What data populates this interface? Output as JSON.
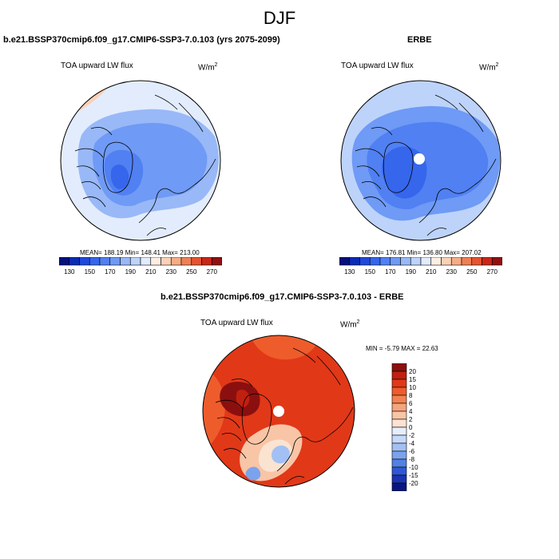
{
  "header": {
    "season": "DJF"
  },
  "panels": [
    {
      "title": "b.e21.BSSP370cmip6.f09_g17.CMIP6-SSP3-7.0.103 (yrs 2075-2099)",
      "variable": "TOA upward LW flux",
      "units_base": "W/m",
      "units_exp": "2",
      "stats": "MEAN= 188.19  Min= 148.41  Max= 213.00"
    },
    {
      "title": "ERBE",
      "variable": "TOA upward LW flux",
      "units_base": "W/m",
      "units_exp": "2",
      "stats": "MEAN= 176.81  Min= 136.80  Max= 207.02"
    },
    {
      "title": "b.e21.BSSP370cmip6.f09_g17.CMIP6-SSP3-7.0.103 - ERBE",
      "variable": "TOA upward LW flux",
      "units_base": "W/m",
      "units_exp": "2",
      "stats": "MIN =  -5.79 MAX =  22.63"
    }
  ],
  "chart_data": [
    {
      "type": "heatmap",
      "projection": "north polar stereographic",
      "title": "b.e21.BSSP370cmip6.f09_g17.CMIP6-SSP3-7.0.103 (yrs 2075-2099)",
      "variable": "TOA upward LW flux",
      "units": "W/m2",
      "mean": 188.19,
      "min": 148.41,
      "max": 213.0,
      "colorbar": {
        "orientation": "horizontal",
        "levels": [
          120,
          130,
          140,
          150,
          160,
          170,
          180,
          190,
          200,
          210,
          220,
          230,
          240,
          250,
          260,
          270
        ],
        "tick_labels": [
          "130",
          "150",
          "170",
          "190",
          "210",
          "230",
          "250",
          "270"
        ],
        "colors": [
          "#08107e",
          "#0c2bb4",
          "#1f49dc",
          "#3566ec",
          "#5080f2",
          "#6f9af5",
          "#98b8f8",
          "#bdd3fa",
          "#e2ecfc",
          "#fdeee2",
          "#fbd1b6",
          "#f6ac85",
          "#f07f56",
          "#e45430",
          "#c7281a",
          "#911011"
        ]
      }
    },
    {
      "type": "heatmap",
      "projection": "north polar stereographic",
      "title": "ERBE",
      "variable": "TOA upward LW flux",
      "units": "W/m2",
      "mean": 176.81,
      "min": 136.8,
      "max": 207.02,
      "colorbar": {
        "orientation": "horizontal",
        "levels": [
          120,
          130,
          140,
          150,
          160,
          170,
          180,
          190,
          200,
          210,
          220,
          230,
          240,
          250,
          260,
          270
        ],
        "tick_labels": [
          "130",
          "150",
          "170",
          "190",
          "210",
          "230",
          "250",
          "270"
        ],
        "colors": [
          "#08107e",
          "#0c2bb4",
          "#1f49dc",
          "#3566ec",
          "#5080f2",
          "#6f9af5",
          "#98b8f8",
          "#bdd3fa",
          "#e2ecfc",
          "#fdeee2",
          "#fbd1b6",
          "#f6ac85",
          "#f07f56",
          "#e45430",
          "#c7281a",
          "#911011"
        ]
      }
    },
    {
      "type": "heatmap",
      "projection": "north polar stereographic",
      "title": "b.e21.BSSP370cmip6.f09_g17.CMIP6-SSP3-7.0.103 - ERBE",
      "variable": "TOA upward LW flux",
      "units": "W/m2",
      "min": -5.79,
      "max": 22.63,
      "colorbar": {
        "orientation": "vertical",
        "tick_labels": [
          "20",
          "15",
          "10",
          "8",
          "6",
          "4",
          "2",
          "0",
          "-2",
          "-4",
          "-6",
          "-8",
          "-10",
          "-15",
          "-20"
        ],
        "colors": [
          "#8b0f0f",
          "#c0200f",
          "#e13818",
          "#ee5c2c",
          "#f28252",
          "#f5a47c",
          "#f8c5a6",
          "#fbe3d2",
          "#e6eefc",
          "#c7d9f8",
          "#a2c0f3",
          "#7ba3ed",
          "#5280e4",
          "#3158d4",
          "#1a34b2",
          "#0a1680"
        ]
      }
    }
  ]
}
